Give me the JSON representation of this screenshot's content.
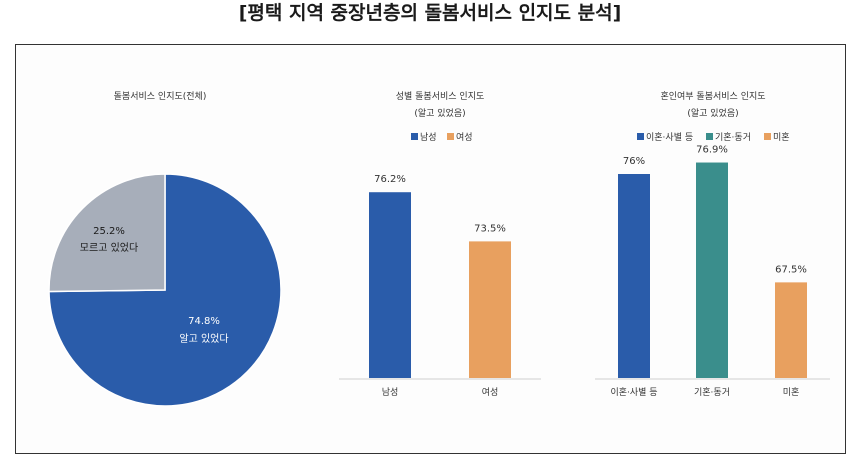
{
  "page": {
    "title": "[평택 지역 중장년층의 돌봄서비스 인지도 분석]"
  },
  "chart_data": [
    {
      "type": "pie",
      "title": "돌봄서비스 인지도(전체)",
      "slices": [
        {
          "label": "알고 있었다",
          "value": 74.8,
          "value_label": "74.8%",
          "color": "#2A5CAA"
        },
        {
          "label": "모르고 있었다",
          "value": 25.2,
          "value_label": "25.2%",
          "color": "#A7AEBA"
        }
      ]
    },
    {
      "type": "bar",
      "title": "성별 돌봄서비스 인지도",
      "subtitle": "(알고 있었음)",
      "categories": [
        "남성",
        "여성"
      ],
      "values": [
        76.2,
        73.5
      ],
      "value_labels": [
        "76.2%",
        "73.5%"
      ],
      "colors": [
        "#2A5CAA",
        "#E8A05F"
      ],
      "legend": [
        "남성",
        "여성"
      ],
      "legend_position": "top",
      "ylim": [
        66,
        80
      ]
    },
    {
      "type": "bar",
      "title": "혼인여부 돌봄서비스 인지도",
      "subtitle": "(알고 있었음)",
      "categories": [
        "이혼·사별 등",
        "기혼·동거",
        "미혼"
      ],
      "values": [
        76,
        76.9,
        67.5
      ],
      "value_labels": [
        "76%",
        "76.9%",
        "67.5%"
      ],
      "colors": [
        "#2A5CAA",
        "#3A8E8C",
        "#E8A05F"
      ],
      "legend": [
        "이혼·사별 등",
        "기혼·동거",
        "미혼"
      ],
      "legend_position": "top",
      "ylim": [
        60,
        80
      ]
    }
  ]
}
